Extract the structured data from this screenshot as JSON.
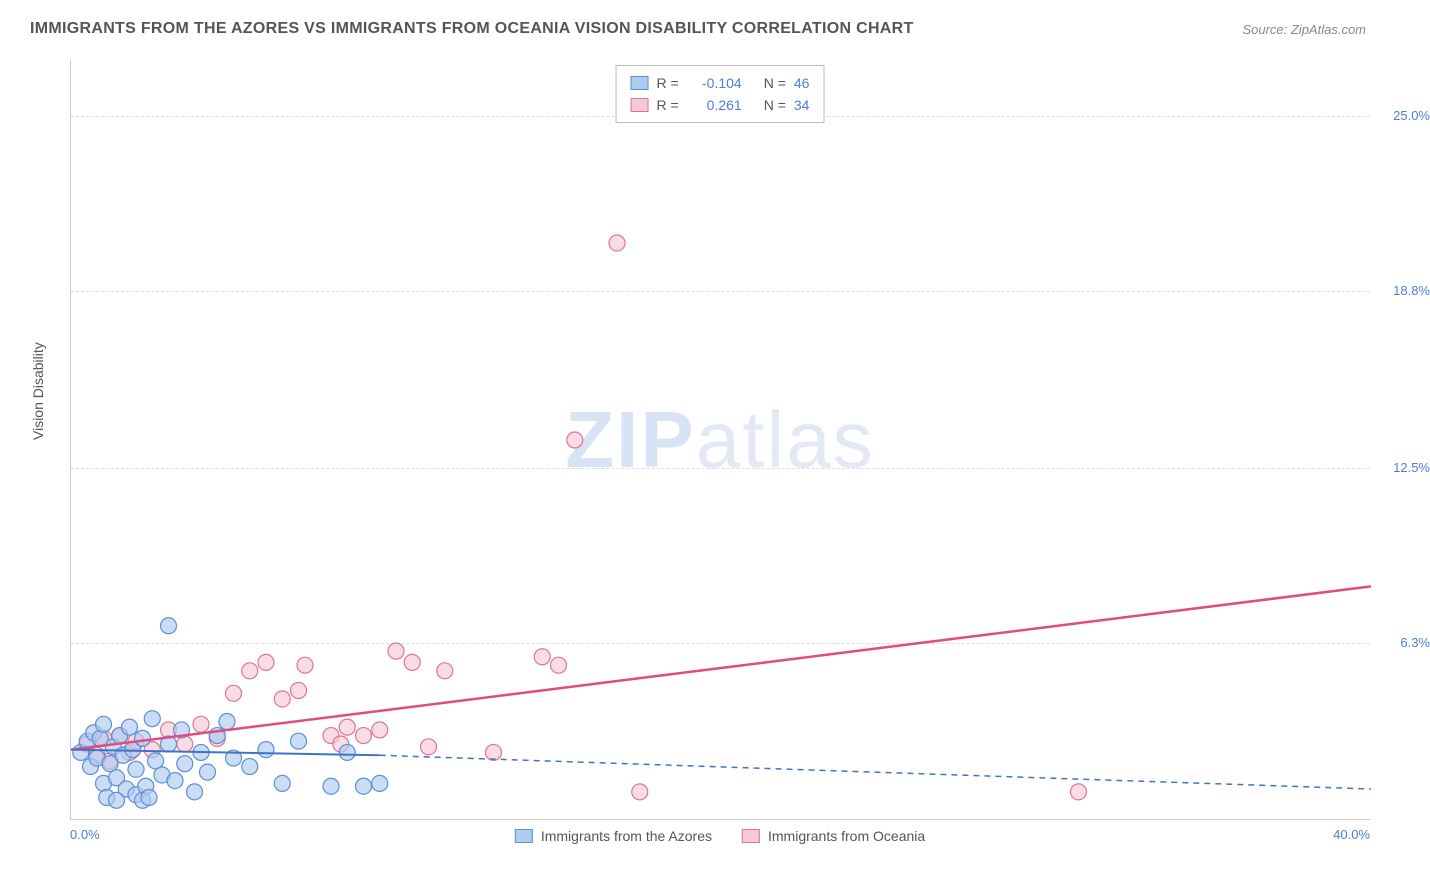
{
  "title": "IMMIGRANTS FROM THE AZORES VS IMMIGRANTS FROM OCEANIA VISION DISABILITY CORRELATION CHART",
  "source": "Source: ZipAtlas.com",
  "watermark_bold": "ZIP",
  "watermark_thin": "atlas",
  "chart": {
    "type": "scatter",
    "ylabel": "Vision Disability",
    "xlim": [
      0,
      40
    ],
    "ylim": [
      0,
      27
    ],
    "xtick_min": "0.0%",
    "xtick_max": "40.0%",
    "yticks": [
      {
        "v": 6.3,
        "label": "6.3%"
      },
      {
        "v": 12.5,
        "label": "12.5%"
      },
      {
        "v": 18.8,
        "label": "18.8%"
      },
      {
        "v": 25.0,
        "label": "25.0%"
      }
    ],
    "grid_color": "#dddddd",
    "background_color": "#ffffff",
    "series": {
      "azores": {
        "label": "Immigrants from the Azores",
        "fill": "#aecbf0",
        "stroke": "#5b8fd6",
        "R_label": "R =",
        "R": "-0.104",
        "N_label": "N =",
        "N": "46",
        "marker_radius": 8,
        "trend": {
          "x1": 0,
          "y1": 2.5,
          "x2": 9.5,
          "y2": 2.3,
          "extrap_x2": 40,
          "extrap_y2": 1.1,
          "stroke": "#3f73c8",
          "width": 2,
          "dash": "6,5"
        },
        "points": [
          [
            0.3,
            2.4
          ],
          [
            0.5,
            2.8
          ],
          [
            0.6,
            1.9
          ],
          [
            0.7,
            3.1
          ],
          [
            0.8,
            2.2
          ],
          [
            0.9,
            2.9
          ],
          [
            1.0,
            1.3
          ],
          [
            1.0,
            3.4
          ],
          [
            1.2,
            2.0
          ],
          [
            1.3,
            2.6
          ],
          [
            1.4,
            1.5
          ],
          [
            1.5,
            3.0
          ],
          [
            1.6,
            2.3
          ],
          [
            1.7,
            1.1
          ],
          [
            1.8,
            3.3
          ],
          [
            1.9,
            2.5
          ],
          [
            2.0,
            0.9
          ],
          [
            2.0,
            1.8
          ],
          [
            2.2,
            2.9
          ],
          [
            2.3,
            1.2
          ],
          [
            2.5,
            3.6
          ],
          [
            2.6,
            2.1
          ],
          [
            2.8,
            1.6
          ],
          [
            3.0,
            2.7
          ],
          [
            3.2,
            1.4
          ],
          [
            3.4,
            3.2
          ],
          [
            3.5,
            2.0
          ],
          [
            3.8,
            1.0
          ],
          [
            4.0,
            2.4
          ],
          [
            4.2,
            1.7
          ],
          [
            4.5,
            3.0
          ],
          [
            5.0,
            2.2
          ],
          [
            1.1,
            0.8
          ],
          [
            1.4,
            0.7
          ],
          [
            2.2,
            0.7
          ],
          [
            2.4,
            0.8
          ],
          [
            3.0,
            6.9
          ],
          [
            5.5,
            1.9
          ],
          [
            6.0,
            2.5
          ],
          [
            6.5,
            1.3
          ],
          [
            7.0,
            2.8
          ],
          [
            8.0,
            1.2
          ],
          [
            8.5,
            2.4
          ],
          [
            9.0,
            1.2
          ],
          [
            9.5,
            1.3
          ],
          [
            4.8,
            3.5
          ]
        ]
      },
      "oceania": {
        "label": "Immigrants from Oceania",
        "fill": "#f6c9d5",
        "stroke": "#e27396",
        "R_label": "R =",
        "R": "0.261",
        "N_label": "N =",
        "N": "34",
        "marker_radius": 8,
        "trend": {
          "x1": 0,
          "y1": 2.5,
          "x2": 40,
          "y2": 8.3,
          "stroke": "#e04b82",
          "width": 2.5,
          "dash": ""
        },
        "points": [
          [
            0.5,
            2.7
          ],
          [
            0.8,
            2.3
          ],
          [
            1.0,
            2.9
          ],
          [
            1.2,
            2.1
          ],
          [
            1.5,
            3.0
          ],
          [
            1.8,
            2.4
          ],
          [
            2.0,
            2.8
          ],
          [
            2.5,
            2.5
          ],
          [
            3.0,
            3.2
          ],
          [
            3.5,
            2.7
          ],
          [
            4.0,
            3.4
          ],
          [
            4.5,
            2.9
          ],
          [
            5.0,
            4.5
          ],
          [
            5.5,
            5.3
          ],
          [
            6.0,
            5.6
          ],
          [
            6.5,
            4.3
          ],
          [
            7.0,
            4.6
          ],
          [
            7.2,
            5.5
          ],
          [
            8.0,
            3.0
          ],
          [
            8.3,
            2.7
          ],
          [
            8.5,
            3.3
          ],
          [
            9.0,
            3.0
          ],
          [
            9.5,
            3.2
          ],
          [
            10.0,
            6.0
          ],
          [
            10.5,
            5.6
          ],
          [
            11.0,
            2.6
          ],
          [
            11.5,
            5.3
          ],
          [
            13.0,
            2.4
          ],
          [
            14.5,
            5.8
          ],
          [
            15.0,
            5.5
          ],
          [
            17.5,
            1.0
          ],
          [
            15.5,
            13.5
          ],
          [
            16.8,
            20.5
          ],
          [
            31.0,
            1.0
          ]
        ]
      }
    }
  }
}
